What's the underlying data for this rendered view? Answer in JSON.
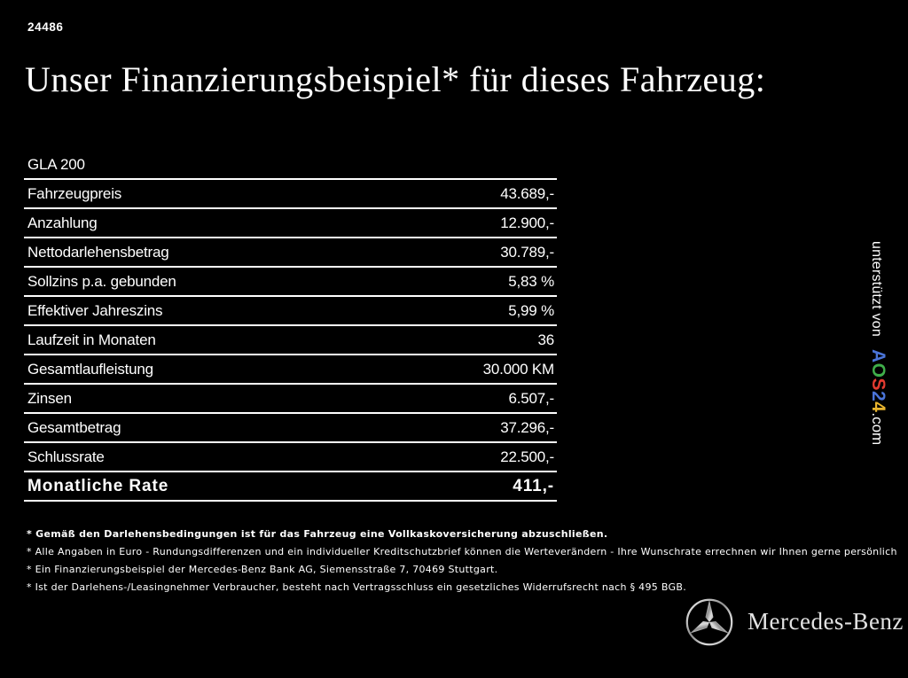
{
  "page": {
    "code": "24486",
    "title": "Unser Finanzierungsbeispiel* für dieses Fahrzeug:",
    "background_color": "#000000",
    "text_color": "#ffffff"
  },
  "finance_table": {
    "model": "GLA 200",
    "rows": [
      {
        "label": "Fahrzeugpreis",
        "value": "43.689,-"
      },
      {
        "label": "Anzahlung",
        "value": "12.900,-"
      },
      {
        "label": "Nettodarlehensbetrag",
        "value": "30.789,-"
      },
      {
        "label": "Sollzins p.a. gebunden",
        "value": "5,83 %"
      },
      {
        "label": "Effektiver Jahreszins",
        "value": "5,99 %"
      },
      {
        "label": "Laufzeit in Monaten",
        "value": "36"
      },
      {
        "label": "Gesamtlaufleistung",
        "value": "30.000 KM"
      },
      {
        "label": "Zinsen",
        "value": "6.507,-"
      },
      {
        "label": "Gesamtbetrag",
        "value": "37.296,-"
      },
      {
        "label": "Schlussrate",
        "value": "22.500,-"
      }
    ],
    "total_row": {
      "label": "Monatliche Rate",
      "value": "411,-"
    }
  },
  "footnotes": [
    {
      "text": "* Gemäß den Darlehensbedingungen ist für das Fahrzeug eine Vollkaskoversicherung abzuschließen.",
      "bold": true
    },
    {
      "text": "* Alle Angaben in Euro - Rundungsdifferenzen und ein individueller Kreditschutzbrief können die Werteverändern - Ihre Wunschrate errechnen wir Ihnen gerne persönlich",
      "bold": false
    },
    {
      "text": "* Ein Finanzierungsbeispiel der Mercedes-Benz Bank AG, Siemensstraße 7, 70469 Stuttgart.",
      "bold": false
    },
    {
      "text": "* Ist der Darlehens-/Leasingnehmer Verbraucher, besteht nach Vertragsschluss ein gesetzliches Widerrufsrecht nach § 495 BGB.",
      "bold": false
    }
  ],
  "sidebar_credit": {
    "prefix": "unterstützt von",
    "brand_letters": [
      {
        "char": "A",
        "color": "#4a74d8"
      },
      {
        "char": "O",
        "color": "#3fae4a"
      },
      {
        "char": "S",
        "color": "#e23b30"
      },
      {
        "char": "2",
        "color": "#4a74d8"
      },
      {
        "char": "4",
        "color": "#e8b42e"
      }
    ],
    "suffix": ".com"
  },
  "footer": {
    "brand": "Mercedes-Benz"
  }
}
